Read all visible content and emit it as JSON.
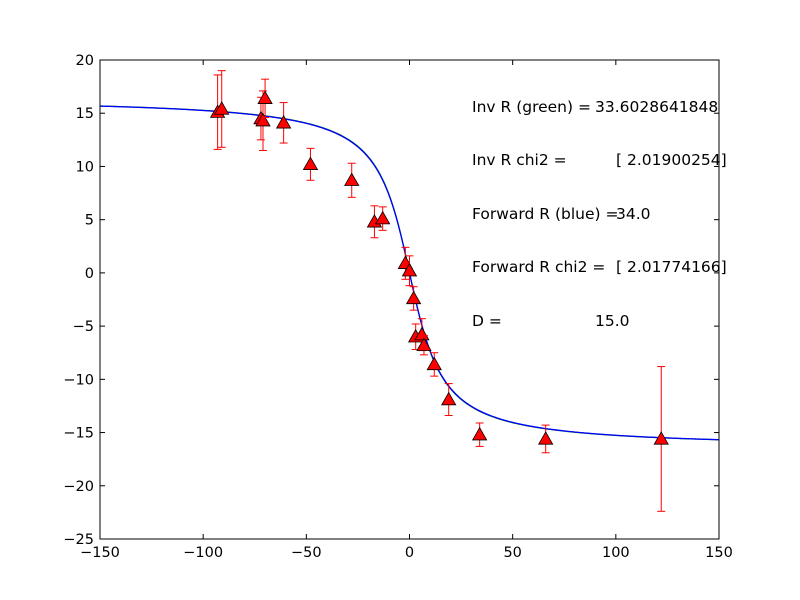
{
  "chart_data": {
    "type": "scatter",
    "title": "",
    "xlabel": "",
    "ylabel": "",
    "xlim": [
      -150,
      150
    ],
    "ylim": [
      -25,
      20
    ],
    "xticks": [
      -150,
      -100,
      -50,
      0,
      50,
      100,
      150
    ],
    "yticks": [
      -25,
      -20,
      -15,
      -10,
      -5,
      0,
      5,
      10,
      15,
      20
    ],
    "xtick_labels": [
      "−150",
      "−100",
      "−50",
      "0",
      "50",
      "100",
      "150"
    ],
    "ytick_labels": [
      "−25",
      "−20",
      "−15",
      "−10",
      "−5",
      "0",
      "5",
      "10",
      "15",
      "20"
    ],
    "grid": false,
    "colors": {
      "marker_fill": "#ff0000",
      "marker_edge": "#000000",
      "errorbar": "#ff0000",
      "inv_curve": "#008000",
      "forward_curve": "#0000ff"
    },
    "points": [
      {
        "x": -93,
        "y": 15.1,
        "err": 3.5
      },
      {
        "x": -91,
        "y": 15.4,
        "err": 3.6
      },
      {
        "x": -72,
        "y": 14.5,
        "err": 2.0
      },
      {
        "x": -71,
        "y": 14.3,
        "err": 2.8
      },
      {
        "x": -70,
        "y": 16.4,
        "err": 1.8
      },
      {
        "x": -61,
        "y": 14.1,
        "err": 1.9
      },
      {
        "x": -48,
        "y": 10.2,
        "err": 1.5
      },
      {
        "x": -28,
        "y": 8.7,
        "err": 1.6
      },
      {
        "x": -17,
        "y": 4.8,
        "err": 1.5
      },
      {
        "x": -13,
        "y": 5.1,
        "err": 1.1
      },
      {
        "x": -2,
        "y": 0.9,
        "err": 1.5
      },
      {
        "x": 0,
        "y": 0.2,
        "err": 1.4
      },
      {
        "x": 2,
        "y": -2.4,
        "err": 1.1
      },
      {
        "x": 3,
        "y": -6.0,
        "err": 1.2
      },
      {
        "x": 6,
        "y": -5.8,
        "err": 1.5
      },
      {
        "x": 7,
        "y": -6.8,
        "err": 0.9
      },
      {
        "x": 12,
        "y": -8.6,
        "err": 1.1
      },
      {
        "x": 19,
        "y": -11.9,
        "err": 1.5
      },
      {
        "x": 34,
        "y": -15.2,
        "err": 1.1
      },
      {
        "x": 66,
        "y": -15.6,
        "err": 1.3
      },
      {
        "x": 122,
        "y": -15.6,
        "err": 6.8
      }
    ],
    "curves": [
      {
        "color_key": "inv_curve",
        "R": 33.6028641848,
        "D": 15.0
      },
      {
        "color_key": "forward_curve",
        "R": 34.0,
        "D": 15.0
      }
    ],
    "annotations": [
      {
        "label": "Inv R (green) =",
        "value": "33.6028641848"
      },
      {
        "label": "Inv R chi2 =",
        "value": "[ 2.01900254]"
      },
      {
        "label": "Forward R (blue) =",
        "value": "34.0"
      },
      {
        "label": "Forward R chi2 =",
        "value": "[ 2.01774166]"
      },
      {
        "label": "D =",
        "value": "15.0"
      }
    ]
  }
}
